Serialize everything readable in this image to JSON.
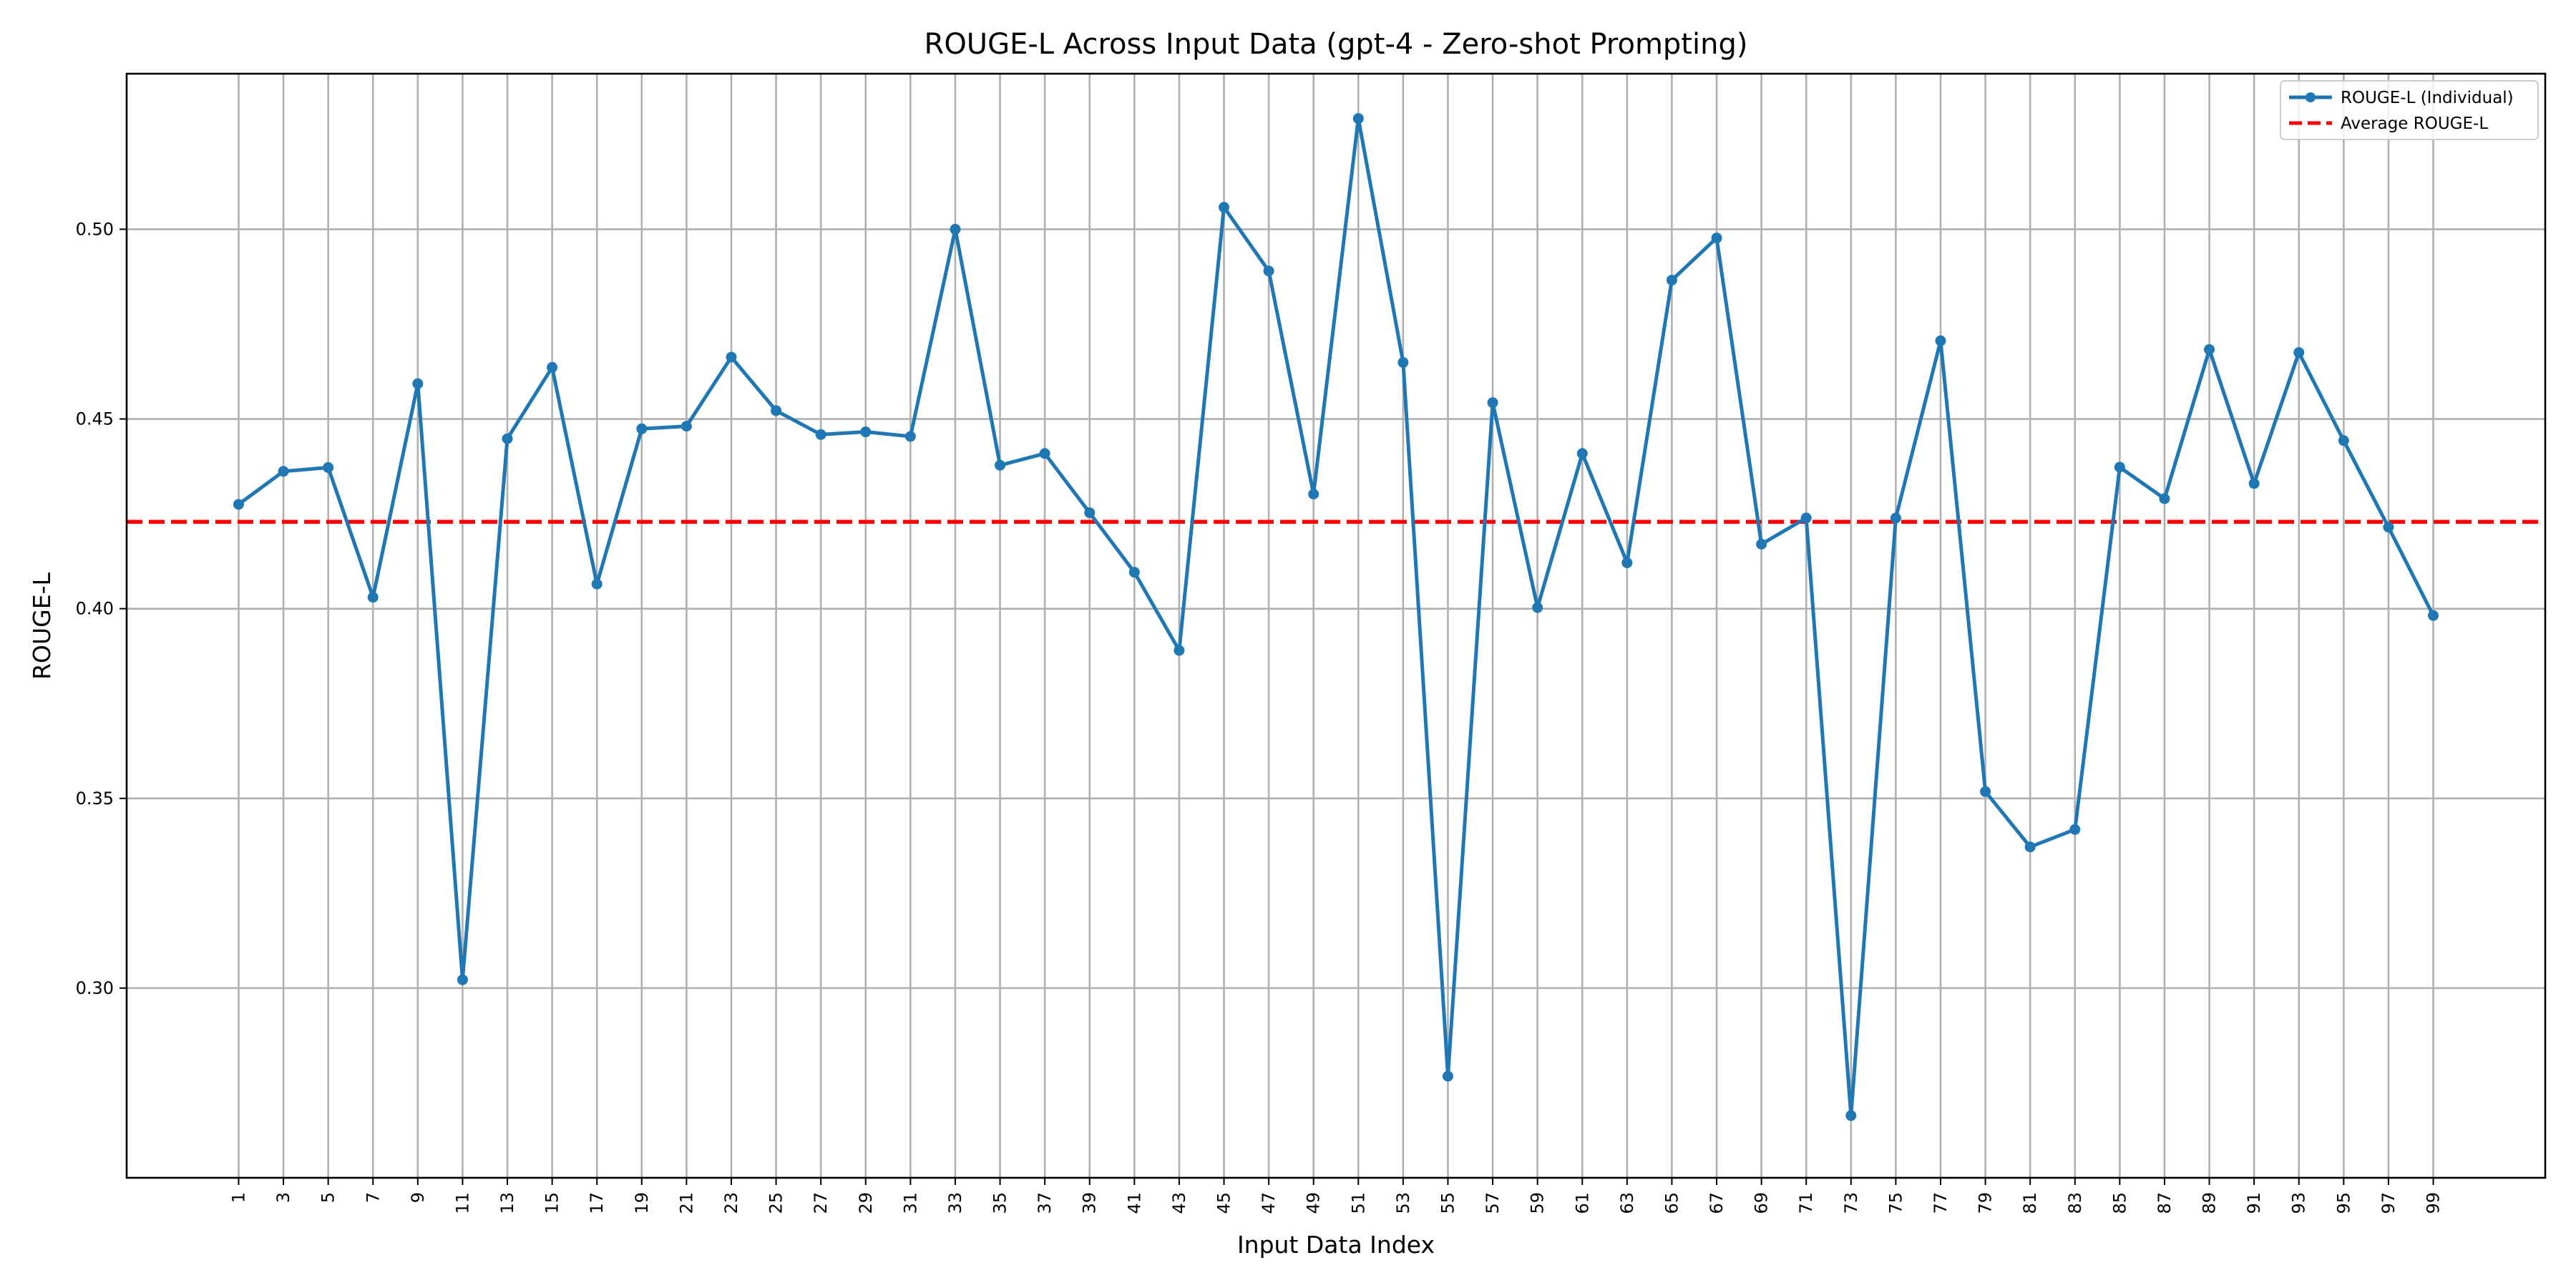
{
  "chart_data": {
    "type": "line",
    "title": "ROUGE-L Across Input Data (gpt-4 - Zero-shot Prompting)",
    "xlabel": "Input Data Index",
    "ylabel": "ROUGE-L",
    "x": [
      1,
      3,
      5,
      7,
      9,
      11,
      13,
      15,
      17,
      19,
      21,
      23,
      25,
      27,
      29,
      31,
      33,
      35,
      37,
      39,
      41,
      43,
      45,
      47,
      49,
      51,
      53,
      55,
      57,
      59,
      61,
      63,
      65,
      67,
      69,
      71,
      73,
      75,
      77,
      79,
      81,
      83,
      85,
      87,
      89,
      91,
      93,
      95,
      97,
      99
    ],
    "x_tick_labels": [
      "1",
      "3",
      "5",
      "7",
      "9",
      "11",
      "13",
      "15",
      "17",
      "19",
      "21",
      "23",
      "25",
      "27",
      "29",
      "31",
      "33",
      "35",
      "37",
      "39",
      "41",
      "43",
      "45",
      "47",
      "49",
      "51",
      "53",
      "55",
      "57",
      "59",
      "61",
      "63",
      "65",
      "67",
      "69",
      "71",
      "73",
      "75",
      "77",
      "79",
      "81",
      "83",
      "85",
      "87",
      "89",
      "91",
      "93",
      "95",
      "97",
      "99"
    ],
    "xlim": [
      -4,
      104
    ],
    "ylim": [
      0.25,
      0.541
    ],
    "y_ticks": [
      0.3,
      0.35,
      0.4,
      0.45,
      0.5
    ],
    "y_tick_labels": [
      "0.30",
      "0.35",
      "0.40",
      "0.45",
      "0.50"
    ],
    "grid": true,
    "legend_position": "top-right",
    "series": [
      {
        "name": "ROUGE-L (Individual)",
        "style": "solid-line-with-markers",
        "color": "#1f77b4",
        "values": [
          0.4275,
          0.4362,
          0.4372,
          0.403,
          0.4593,
          0.3022,
          0.4448,
          0.4636,
          0.4065,
          0.4474,
          0.4481,
          0.4663,
          0.4522,
          0.4459,
          0.4466,
          0.4454,
          0.5,
          0.4378,
          0.4409,
          0.4253,
          0.4096,
          0.389,
          0.5058,
          0.489,
          0.4302,
          0.5292,
          0.4649,
          0.2768,
          0.4543,
          0.4003,
          0.4409,
          0.4121,
          0.4866,
          0.4977,
          0.417,
          0.4239,
          0.2664,
          0.4239,
          0.4706,
          0.3518,
          0.3372,
          0.3418,
          0.4373,
          0.429,
          0.4683,
          0.433,
          0.4675,
          0.4443,
          0.4215,
          0.3982
        ]
      },
      {
        "name": "Average ROUGE-L",
        "style": "dashed-line",
        "color": "#ff0000",
        "value": 0.4229
      }
    ]
  }
}
